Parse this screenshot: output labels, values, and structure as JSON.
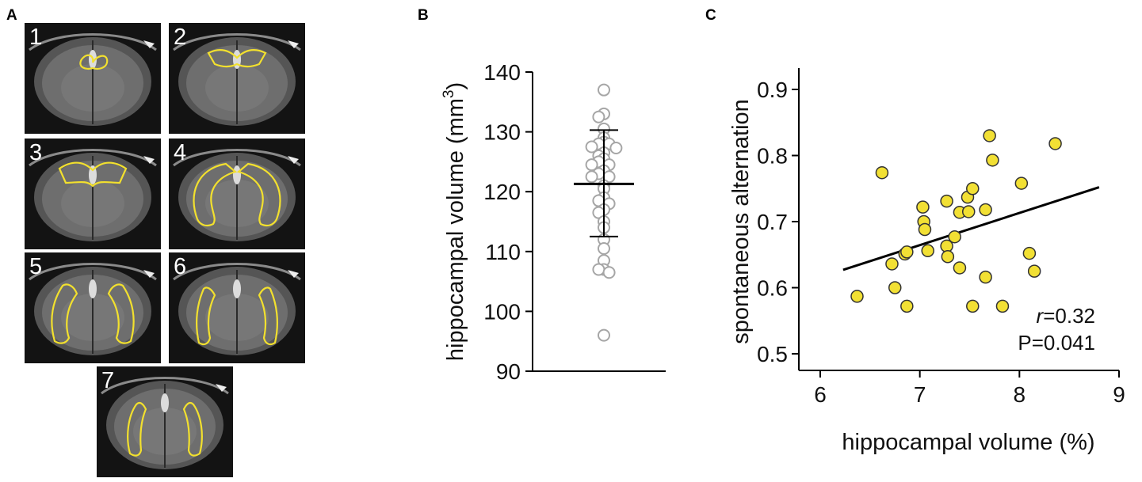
{
  "panel_a": {
    "letter": "A",
    "slices": [
      {
        "label": "1",
        "roi": "dorsal-small"
      },
      {
        "label": "2",
        "roi": "dorsal-wide"
      },
      {
        "label": "3",
        "roi": "dorsal-wings"
      },
      {
        "label": "4",
        "roi": "arches"
      },
      {
        "label": "5",
        "roi": "lateral-bands"
      },
      {
        "label": "6",
        "roi": "lateral-bands-narrow"
      },
      {
        "label": "7",
        "roi": "lateral-ovals"
      }
    ],
    "roi_color": "#f2e02e"
  },
  "chart_data": [
    {
      "panel": "B",
      "type": "scatter",
      "ylabel_main": "hippocampal volume (mm",
      "ylabel_sup": "3",
      "ylabel_close": ")",
      "ylim": [
        90,
        140
      ],
      "yticks": [
        "90",
        "100",
        "110",
        "120",
        "130",
        "140"
      ],
      "values": [
        137,
        133,
        132.5,
        130.5,
        129,
        128.3,
        128,
        128,
        127.5,
        127.3,
        126.5,
        126,
        125.5,
        125,
        124.5,
        124.5,
        123.5,
        123,
        122.5,
        122.5,
        121,
        120.5,
        119,
        118.5,
        118,
        117,
        116.5,
        115,
        114,
        112,
        110.5,
        108.5,
        107,
        107,
        106.5,
        96
      ],
      "mean": 121.3,
      "sd_upper": 130.3,
      "sd_lower": 112.5,
      "marker_color": "#a6a6a6"
    },
    {
      "panel": "C",
      "type": "scatter",
      "xlabel": "hippocampal volume (%)",
      "ylabel": "spontaneous alternation",
      "xlim": [
        6,
        9
      ],
      "ylim": [
        0.47,
        0.93
      ],
      "xticks": [
        "6",
        "7",
        "8",
        "9"
      ],
      "yticks": [
        "0.5",
        "0.6",
        "0.7",
        "0.8",
        "0.9"
      ],
      "points": [
        {
          "x": 6.37,
          "y": 0.587
        },
        {
          "x": 6.62,
          "y": 0.774
        },
        {
          "x": 6.72,
          "y": 0.636
        },
        {
          "x": 6.75,
          "y": 0.6
        },
        {
          "x": 6.85,
          "y": 0.651
        },
        {
          "x": 6.87,
          "y": 0.654
        },
        {
          "x": 6.87,
          "y": 0.572
        },
        {
          "x": 7.03,
          "y": 0.722
        },
        {
          "x": 7.04,
          "y": 0.7
        },
        {
          "x": 7.05,
          "y": 0.688
        },
        {
          "x": 7.08,
          "y": 0.656
        },
        {
          "x": 7.27,
          "y": 0.731
        },
        {
          "x": 7.27,
          "y": 0.663
        },
        {
          "x": 7.28,
          "y": 0.647
        },
        {
          "x": 7.35,
          "y": 0.677
        },
        {
          "x": 7.4,
          "y": 0.714
        },
        {
          "x": 7.4,
          "y": 0.63
        },
        {
          "x": 7.48,
          "y": 0.737
        },
        {
          "x": 7.49,
          "y": 0.715
        },
        {
          "x": 7.53,
          "y": 0.75
        },
        {
          "x": 7.53,
          "y": 0.572
        },
        {
          "x": 7.66,
          "y": 0.718
        },
        {
          "x": 7.66,
          "y": 0.616
        },
        {
          "x": 7.7,
          "y": 0.83
        },
        {
          "x": 7.73,
          "y": 0.793
        },
        {
          "x": 7.83,
          "y": 0.572
        },
        {
          "x": 8.02,
          "y": 0.758
        },
        {
          "x": 8.1,
          "y": 0.652
        },
        {
          "x": 8.15,
          "y": 0.625
        },
        {
          "x": 8.36,
          "y": 0.818
        }
      ],
      "regression": {
        "x0": 6.23,
        "y0": 0.627,
        "x1": 8.8,
        "y1": 0.752
      },
      "annotation_r": "r",
      "annotation_r_value": "=0.32",
      "annotation_p": "P=0.041",
      "marker_color": "#f2e034"
    }
  ]
}
